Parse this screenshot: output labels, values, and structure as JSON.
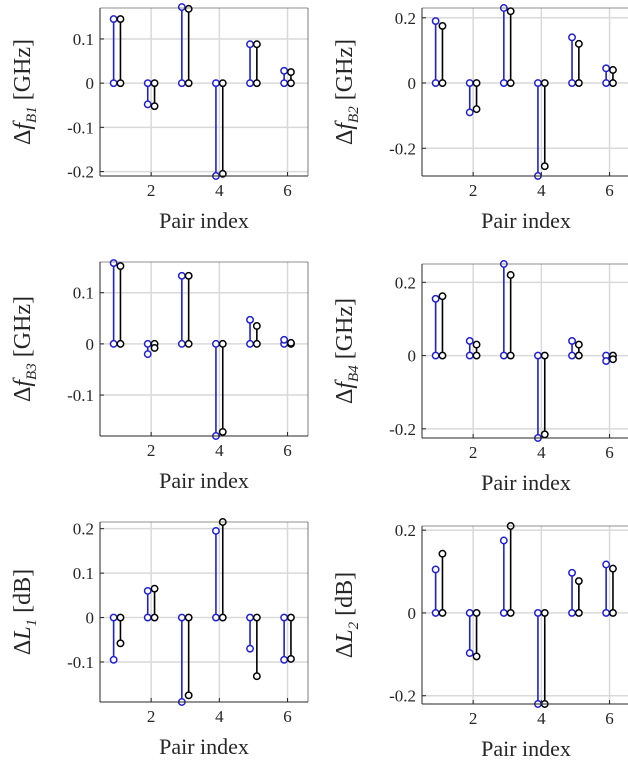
{
  "figure": {
    "colors": {
      "blue": "#1f1fd6",
      "black": "#000000",
      "grid": "#d9d9d9",
      "axis": "#262626"
    }
  },
  "chart_data": [
    {
      "id": "dfB1",
      "type": "stem",
      "ylabel": {
        "delta": "Δ",
        "var": "f",
        "sub": "B1",
        "unit": " [GHz]"
      },
      "xlabel": "Pair index",
      "xlim": [
        0.5,
        6.6
      ],
      "ylim": [
        -0.21,
        0.17
      ],
      "xticks": [
        2,
        4,
        6
      ],
      "yticks": [
        -0.2,
        -0.1,
        0,
        0.1
      ],
      "ytick_labels": [
        "-0.2",
        "-0.1",
        "0",
        "0.1"
      ],
      "grid": true,
      "x": [
        1,
        2,
        3,
        4,
        5,
        6
      ],
      "series": [
        {
          "color": "blue",
          "values": [
            0.145,
            -0.048,
            0.172,
            -0.21,
            0.088,
            0.028
          ]
        },
        {
          "color": "black",
          "values": [
            0.145,
            -0.052,
            0.168,
            -0.205,
            0.088,
            0.025
          ]
        }
      ]
    },
    {
      "id": "dfB2",
      "type": "stem",
      "ylabel": {
        "delta": "Δ",
        "var": "f",
        "sub": "B2",
        "unit": " [GHz]"
      },
      "xlabel": "Pair index",
      "xlim": [
        0.5,
        6.6
      ],
      "ylim": [
        -0.285,
        0.23
      ],
      "xticks": [
        2,
        4,
        6
      ],
      "yticks": [
        -0.2,
        0,
        0.2
      ],
      "ytick_labels": [
        "-0.2",
        "0",
        "0.2"
      ],
      "grid": true,
      "x": [
        1,
        2,
        3,
        4,
        5,
        6
      ],
      "series": [
        {
          "color": "blue",
          "values": [
            0.19,
            -0.09,
            0.23,
            -0.285,
            0.14,
            0.045
          ]
        },
        {
          "color": "black",
          "values": [
            0.175,
            -0.08,
            0.22,
            -0.255,
            0.12,
            0.04
          ]
        }
      ]
    },
    {
      "id": "dfB3",
      "type": "stem",
      "ylabel": {
        "delta": "Δ",
        "var": "f",
        "sub": "B3",
        "unit": " [GHz]"
      },
      "xlabel": "Pair index",
      "xlim": [
        0.5,
        6.6
      ],
      "ylim": [
        -0.18,
        0.16
      ],
      "xticks": [
        2,
        4,
        6
      ],
      "yticks": [
        -0.1,
        0,
        0.1
      ],
      "ytick_labels": [
        "-0.1",
        "0",
        "0.1"
      ],
      "grid": true,
      "x": [
        1,
        2,
        3,
        4,
        5,
        6
      ],
      "series": [
        {
          "color": "blue",
          "values": [
            0.158,
            -0.02,
            0.133,
            -0.18,
            0.047,
            0.008
          ]
        },
        {
          "color": "black",
          "values": [
            0.152,
            -0.008,
            0.133,
            -0.172,
            0.035,
            0.002
          ]
        }
      ]
    },
    {
      "id": "dfB4",
      "type": "stem",
      "ylabel": {
        "delta": "Δ",
        "var": "f",
        "sub": "B4",
        "unit": " [GHz]"
      },
      "xlabel": "Pair index",
      "xlim": [
        0.5,
        6.6
      ],
      "ylim": [
        -0.225,
        0.25
      ],
      "xticks": [
        2,
        4,
        6
      ],
      "yticks": [
        -0.2,
        0,
        0.2
      ],
      "ytick_labels": [
        "-0.2",
        "0",
        "0.2"
      ],
      "grid": true,
      "x": [
        1,
        2,
        3,
        4,
        5,
        6
      ],
      "series": [
        {
          "color": "blue",
          "values": [
            0.155,
            0.04,
            0.25,
            -0.225,
            0.04,
            -0.015
          ]
        },
        {
          "color": "black",
          "values": [
            0.162,
            0.03,
            0.22,
            -0.215,
            0.03,
            -0.01
          ]
        }
      ]
    },
    {
      "id": "dL1",
      "type": "stem",
      "ylabel": {
        "delta": "Δ",
        "var": "L",
        "sub": "1",
        "unit": " [dB]"
      },
      "xlabel": "Pair index",
      "xlim": [
        0.5,
        6.6
      ],
      "ylim": [
        -0.19,
        0.215
      ],
      "xticks": [
        2,
        4,
        6
      ],
      "yticks": [
        -0.1,
        0,
        0.1,
        0.2
      ],
      "ytick_labels": [
        "-0.1",
        "0",
        "0.1",
        "0.2"
      ],
      "grid": true,
      "x": [
        1,
        2,
        3,
        4,
        5,
        6
      ],
      "series": [
        {
          "color": "blue",
          "values": [
            -0.095,
            0.06,
            -0.19,
            0.195,
            -0.07,
            -0.095
          ]
        },
        {
          "color": "black",
          "values": [
            -0.058,
            0.065,
            -0.175,
            0.215,
            -0.132,
            -0.093
          ]
        }
      ]
    },
    {
      "id": "dL2",
      "type": "stem",
      "ylabel": {
        "delta": "Δ",
        "var": "L",
        "sub": "2",
        "unit": " [dB]"
      },
      "xlabel": "Pair index",
      "xlim": [
        0.5,
        6.6
      ],
      "ylim": [
        -0.22,
        0.21
      ],
      "xticks": [
        2,
        4,
        6
      ],
      "yticks": [
        -0.2,
        0,
        0.2
      ],
      "ytick_labels": [
        "-0.2",
        "0",
        "0.2"
      ],
      "grid": true,
      "x": [
        1,
        2,
        3,
        4,
        5,
        6
      ],
      "series": [
        {
          "color": "blue",
          "values": [
            0.105,
            -0.097,
            0.175,
            -0.22,
            0.097,
            0.117
          ]
        },
        {
          "color": "black",
          "values": [
            0.143,
            -0.105,
            0.21,
            -0.22,
            0.077,
            0.107
          ]
        }
      ]
    }
  ]
}
